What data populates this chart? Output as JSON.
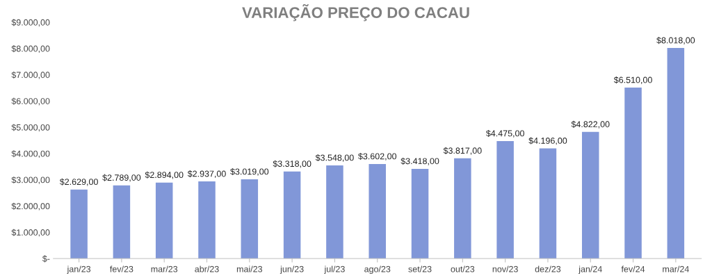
{
  "chart_data": {
    "type": "bar",
    "title": "VARIAÇÃO PREÇO DO CACAU",
    "categories": [
      "jan/23",
      "fev/23",
      "mar/23",
      "abr/23",
      "mai/23",
      "jun/23",
      "jul/23",
      "ago/23",
      "set/23",
      "out/23",
      "nov/23",
      "dez/23",
      "jan/24",
      "fev/24",
      "mar/24"
    ],
    "values": [
      2629,
      2789,
      2894,
      2937,
      3019,
      3318,
      3548,
      3602,
      3418,
      3817,
      4475,
      4196,
      4822,
      6510,
      8018
    ],
    "value_labels": [
      "$2.629,00",
      "$2.789,00",
      "$2.894,00",
      "$2.937,00",
      "$3.019,00",
      "$3.318,00",
      "$3.548,00",
      "$3.602,00",
      "$3.418,00",
      "$3.817,00",
      "$4.475,00",
      "$4.196,00",
      "$4.822,00",
      "$6.510,00",
      "$8.018,00"
    ],
    "color": "#8197d8",
    "ylim": [
      0,
      9000
    ],
    "yticks": [
      {
        "value": 0,
        "label": "$-"
      },
      {
        "value": 1000,
        "label": "$1.000,00"
      },
      {
        "value": 2000,
        "label": "$2.000,00"
      },
      {
        "value": 3000,
        "label": "$3.000,00"
      },
      {
        "value": 4000,
        "label": "$4.000,00"
      },
      {
        "value": 5000,
        "label": "$5.000,00"
      },
      {
        "value": 6000,
        "label": "$6.000,00"
      },
      {
        "value": 7000,
        "label": "$7.000,00"
      },
      {
        "value": 8000,
        "label": "$8.000,00"
      },
      {
        "value": 9000,
        "label": "$9.000,00"
      }
    ],
    "grid": false
  }
}
